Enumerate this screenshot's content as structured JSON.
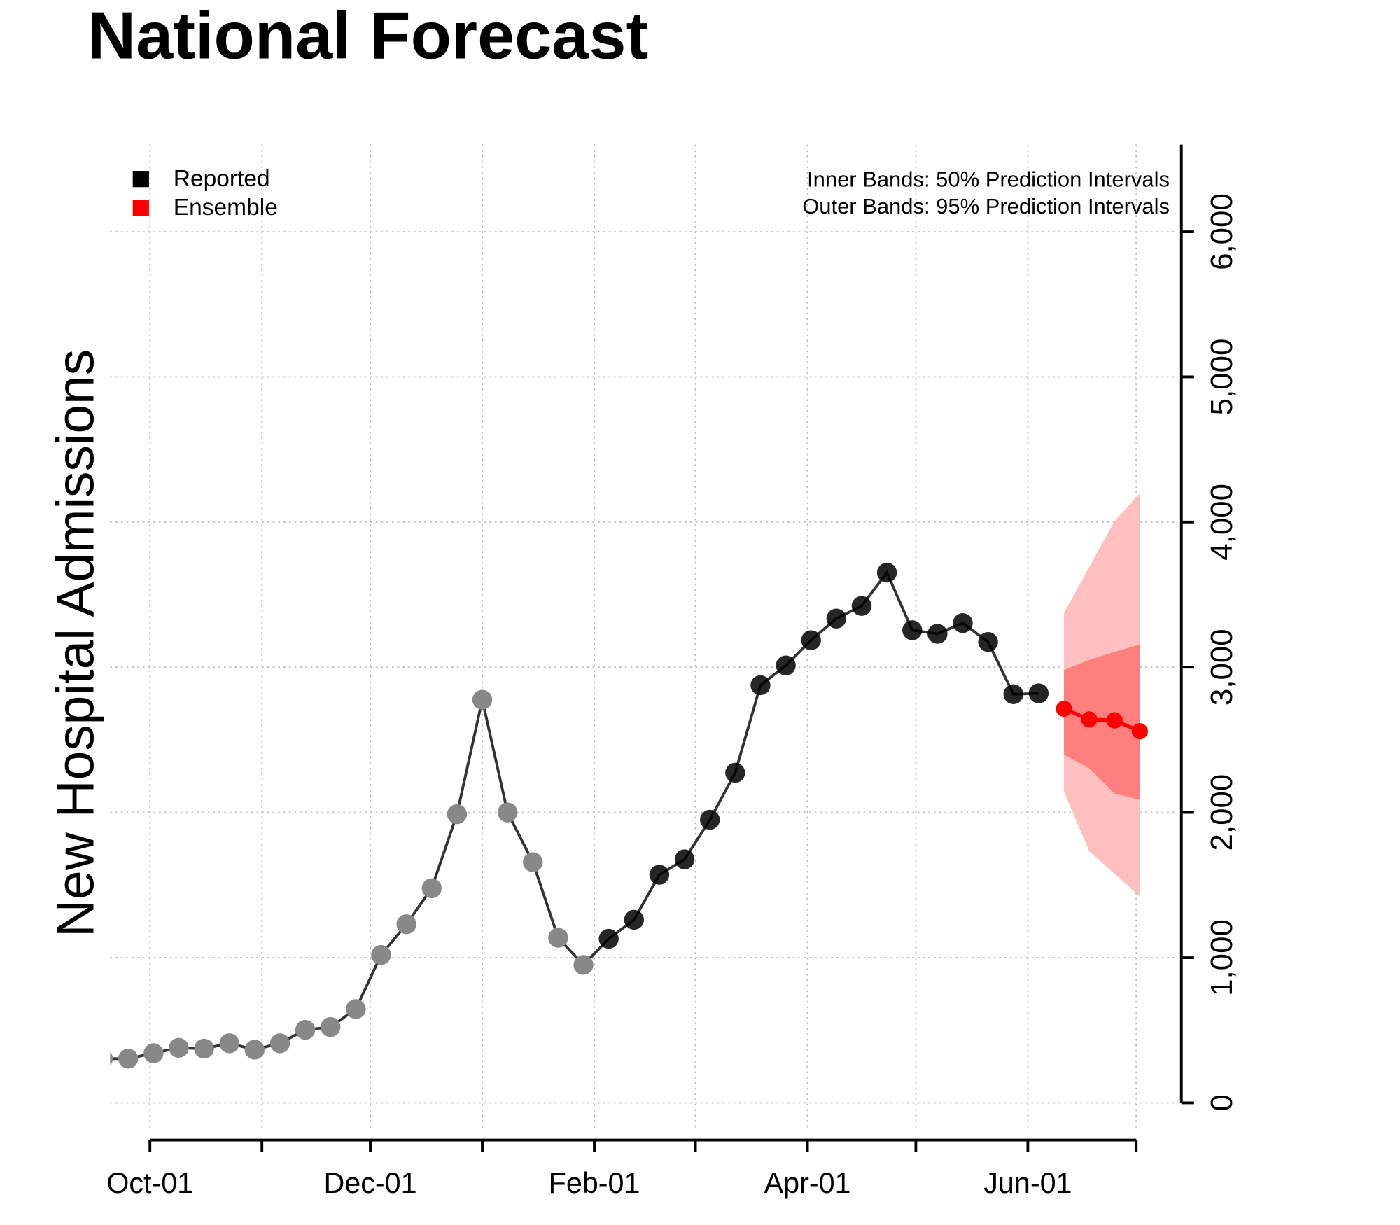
{
  "chart_data": {
    "type": "line",
    "title": "National Forecast",
    "y_label": "New Hospital Admissions",
    "annotations": [
      "Inner Bands: 50% Prediction Intervals",
      "Outer Bands: 95% Prediction Intervals"
    ],
    "xlim": [
      -11,
      285.5
    ],
    "xticks": [
      {
        "value": 0,
        "label": "Oct-01"
      },
      {
        "value": 61,
        "label": "Dec-01"
      },
      {
        "value": 123,
        "label": "Feb-01"
      },
      {
        "value": 182,
        "label": "Apr-01"
      },
      {
        "value": 243,
        "label": "Jun-01"
      }
    ],
    "xticks_minor": [
      31,
      92,
      151,
      212,
      273
    ],
    "ylim": [
      -250,
      6600
    ],
    "yticks": [
      0,
      {
        "value": 1000,
        "label": "1,000"
      },
      {
        "value": 2000,
        "label": "2,000"
      },
      {
        "value": 3000,
        "label": "3,000"
      },
      {
        "value": 4000,
        "label": "4,000"
      },
      {
        "value": 5000,
        "label": "5,000"
      },
      {
        "value": 6000,
        "label": "6,000"
      }
    ],
    "grid": true,
    "legend_position": "top-left",
    "series": [
      {
        "name": "Reported",
        "color": "#000000",
        "faded_color": "#888888",
        "faded_count": 20,
        "x": [
          -13,
          -6,
          1,
          8,
          15,
          22,
          29,
          36,
          43,
          50,
          57,
          64,
          71,
          78,
          85,
          92,
          99,
          106,
          113,
          120,
          127,
          134,
          141,
          148,
          155,
          162,
          169,
          176,
          183,
          190,
          197,
          204,
          211,
          218,
          225,
          232,
          239,
          246
        ],
        "values": [
          304,
          304,
          342,
          379,
          373,
          410,
          366,
          410,
          503,
          522,
          646,
          1019,
          1230,
          1478,
          1988,
          2776,
          2000,
          1658,
          1137,
          950,
          1130,
          1261,
          1571,
          1677,
          1950,
          2273,
          2876,
          3012,
          3186,
          3335,
          3422,
          3652,
          3255,
          3230,
          3304,
          3174,
          2814,
          2820
        ]
      },
      {
        "name": "Ensemble",
        "color": "#ff0000",
        "band_50_color": "#ff7f7f",
        "band_95_color": "#ffbfbf",
        "x": [
          253,
          260,
          267,
          274
        ],
        "values": [
          2714,
          2640,
          2634,
          2559
        ],
        "lower_50": [
          2398,
          2304,
          2130,
          2087
        ],
        "upper_50": [
          2981,
          3050,
          3106,
          3155
        ],
        "lower_95": [
          2143,
          1733,
          1578,
          1422
        ],
        "upper_95": [
          3373,
          3690,
          4006,
          4199
        ]
      }
    ]
  }
}
